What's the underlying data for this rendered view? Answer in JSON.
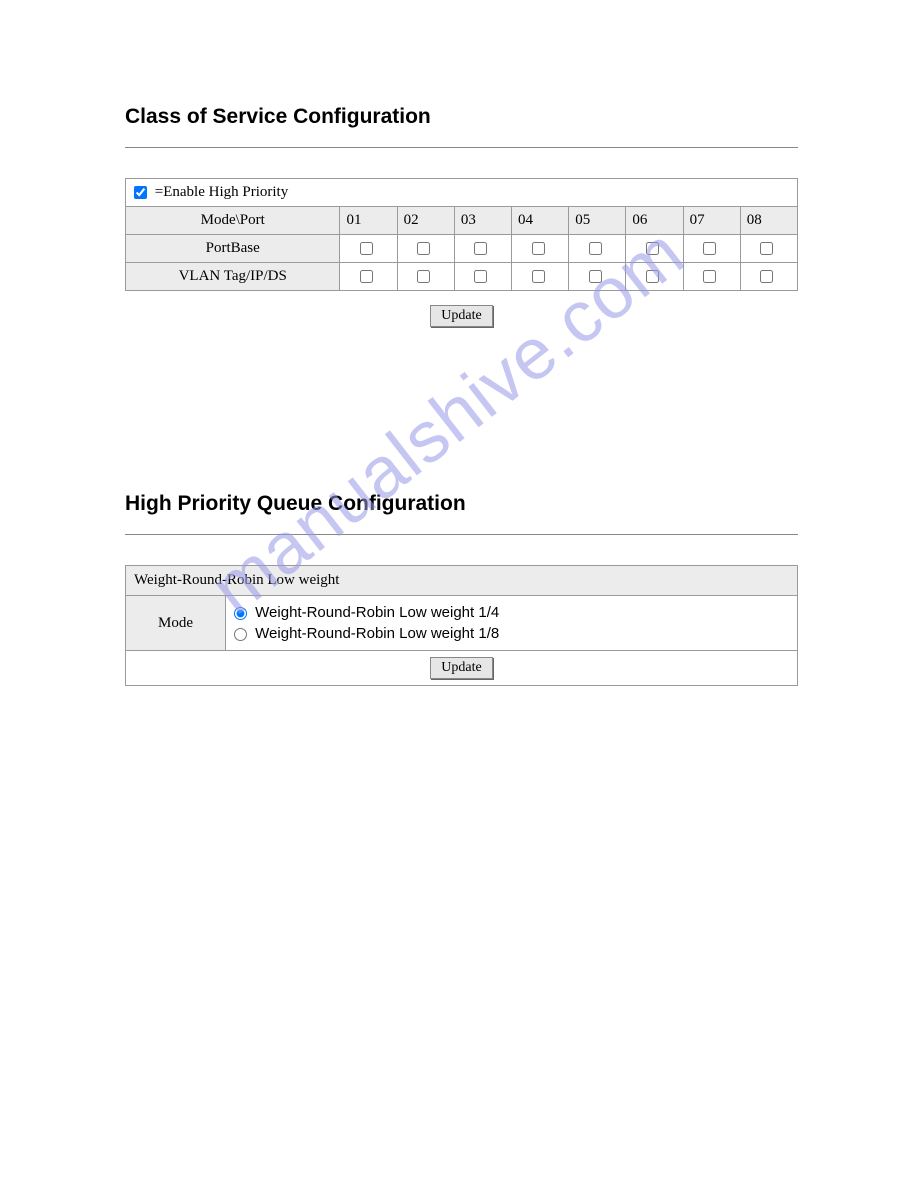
{
  "section1": {
    "title": "Class of Service Configuration",
    "enable_label": "=Enable High Priority",
    "enable_checked": true,
    "mode_port_header": "Mode\\Port",
    "ports": [
      "01",
      "02",
      "03",
      "04",
      "05",
      "06",
      "07",
      "08"
    ],
    "rows": [
      {
        "label": "PortBase",
        "checked": [
          false,
          false,
          false,
          false,
          false,
          false,
          false,
          false
        ]
      },
      {
        "label": "VLAN Tag/IP/DS",
        "checked": [
          false,
          false,
          false,
          false,
          false,
          false,
          false,
          false
        ]
      }
    ],
    "update_label": "Update"
  },
  "section2": {
    "title": "High Priority Queue Configuration",
    "header_label": "Weight-Round-Robin Low weight",
    "mode_label": "Mode",
    "options": [
      {
        "label": "Weight-Round-Robin Low weight 1/4",
        "selected": true
      },
      {
        "label": "Weight-Round-Robin Low weight 1/8",
        "selected": false
      }
    ],
    "update_label": "Update"
  },
  "watermark": "manualshive.com",
  "colors": {
    "bg": "#ffffff",
    "header_bg": "#ececec",
    "border": "#9a9a9a",
    "text": "#000000",
    "watermark": "#9999e8"
  }
}
